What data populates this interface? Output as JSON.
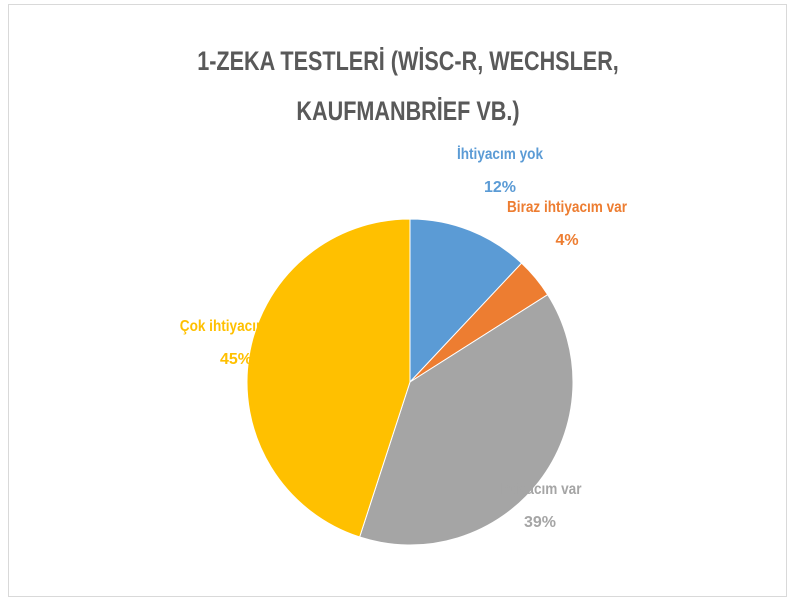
{
  "chart_data": {
    "type": "pie",
    "title": "1-ZEKA TESTLERİ (WİSC-R, WECHSLER, KAUFMANBRİEF VB.)",
    "categories": [
      "İhtiyacım yok",
      "Biraz ihtiyacım var",
      "İhtiyacım var",
      "Çok ihtiyacım var"
    ],
    "values": [
      12,
      4,
      39,
      45
    ],
    "value_labels": [
      "12%",
      "4%",
      "39%",
      "45%"
    ],
    "colors": [
      "#5b9bd5",
      "#ed7d31",
      "#a5a5a5",
      "#ffc000"
    ]
  }
}
